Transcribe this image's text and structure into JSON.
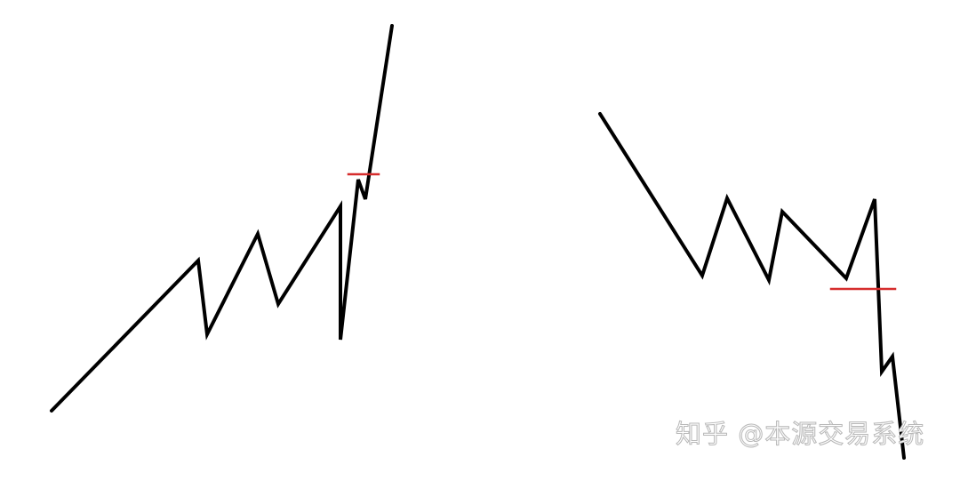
{
  "canvas": {
    "background": "#ffffff"
  },
  "diagram": {
    "left_pattern": {
      "line_color": "#000000",
      "marker_color": "#d62d2d"
    },
    "right_pattern": {
      "line_color": "#000000",
      "marker_color": "#d62d2d"
    }
  },
  "watermark": {
    "text": "知乎 @本源交易系统"
  }
}
